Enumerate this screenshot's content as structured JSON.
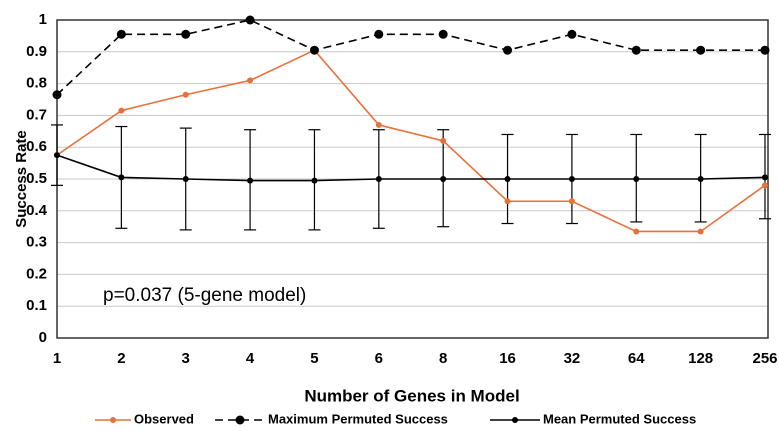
{
  "chart_data": {
    "type": "line",
    "x_label": "Number of Genes in Model",
    "y_label": "Success Rate",
    "annotation": "p=0.037 (5-gene model)",
    "categories": [
      "1",
      "2",
      "3",
      "4",
      "5",
      "6",
      "8",
      "16",
      "32",
      "64",
      "128",
      "256"
    ],
    "ylim": [
      0,
      1
    ],
    "yticks": [
      0,
      0.1,
      0.2,
      0.3,
      0.4,
      0.5,
      0.6,
      0.7,
      0.8,
      0.9,
      1
    ],
    "grid": true,
    "legend": "bottom",
    "series": [
      {
        "name": "Observed",
        "color": "#e8703a",
        "dash": false,
        "values": [
          0.575,
          0.715,
          0.765,
          0.81,
          0.905,
          0.67,
          0.62,
          0.43,
          0.43,
          0.335,
          0.335,
          0.48
        ]
      },
      {
        "name": "Maximum Permuted Success",
        "color": "#000000",
        "dash": true,
        "values": [
          0.765,
          0.955,
          0.955,
          1.0,
          0.905,
          0.955,
          0.955,
          0.905,
          0.955,
          0.905,
          0.905,
          0.905
        ]
      },
      {
        "name": "Mean Permuted Success",
        "color": "#000000",
        "dash": false,
        "values": [
          0.575,
          0.505,
          0.5,
          0.495,
          0.495,
          0.5,
          0.5,
          0.5,
          0.5,
          0.5,
          0.5,
          0.505
        ],
        "error_lower": [
          0.48,
          0.345,
          0.34,
          0.34,
          0.34,
          0.345,
          0.35,
          0.36,
          0.36,
          0.365,
          0.365,
          0.375
        ],
        "error_upper": [
          0.67,
          0.665,
          0.66,
          0.655,
          0.655,
          0.655,
          0.655,
          0.64,
          0.64,
          0.64,
          0.64,
          0.64
        ]
      }
    ]
  }
}
